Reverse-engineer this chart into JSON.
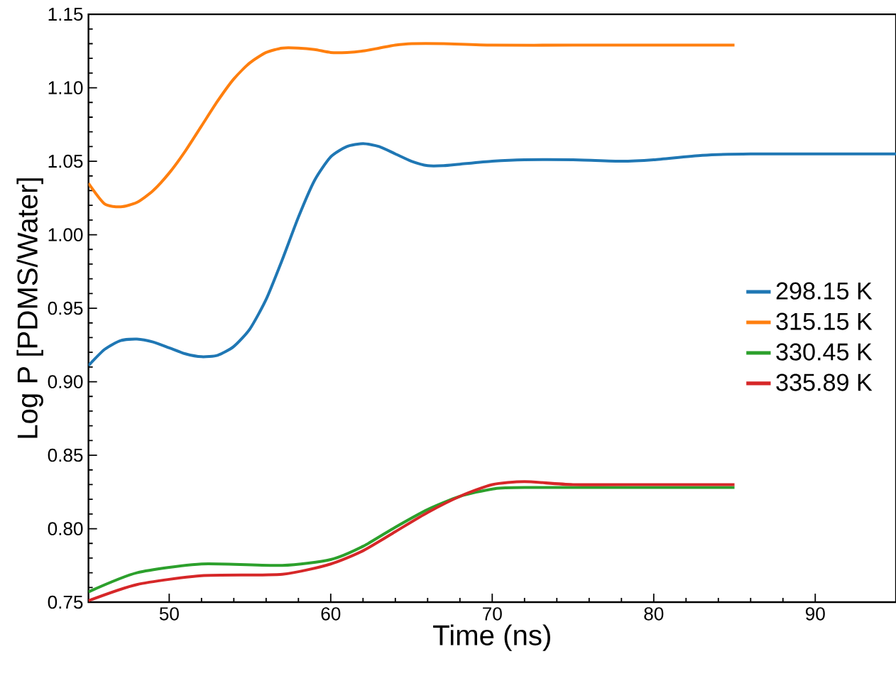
{
  "chart_data": {
    "type": "line",
    "xlabel": "Time (ns)",
    "ylabel": "Log P [PDMS/Water]",
    "xlim": [
      45,
      95
    ],
    "ylim": [
      0.75,
      1.15
    ],
    "xticks": [
      50,
      60,
      70,
      80,
      90
    ],
    "yticks": [
      {
        "value": 0.75,
        "label": "0.75"
      },
      {
        "value": 0.8,
        "label": "0.80"
      },
      {
        "value": 0.85,
        "label": "0.85"
      },
      {
        "value": 0.9,
        "label": "0.90"
      },
      {
        "value": 0.95,
        "label": "0.95"
      },
      {
        "value": 1.0,
        "label": "1.00"
      },
      {
        "value": 1.05,
        "label": "1.05"
      },
      {
        "value": 1.1,
        "label": "1.10"
      },
      {
        "value": 1.15,
        "label": "1.15"
      }
    ],
    "legend": "right",
    "grid": false,
    "marker": "none",
    "line_style": "solid",
    "series": [
      {
        "name": "298.15 K",
        "color": "#1f77b4",
        "x": [
          45,
          46,
          47,
          48,
          49,
          50,
          51,
          52,
          53,
          54,
          55,
          56,
          57,
          58,
          59,
          60,
          61,
          62,
          63,
          64,
          65,
          66,
          67,
          68,
          70,
          72,
          75,
          78,
          80,
          83,
          86,
          90,
          95
        ],
        "values": [
          0.911,
          0.922,
          0.928,
          0.929,
          0.927,
          0.923,
          0.919,
          0.917,
          0.918,
          0.924,
          0.936,
          0.956,
          0.983,
          1.012,
          1.037,
          1.053,
          1.06,
          1.062,
          1.06,
          1.055,
          1.05,
          1.047,
          1.047,
          1.048,
          1.05,
          1.051,
          1.051,
          1.05,
          1.051,
          1.054,
          1.055,
          1.055,
          1.055
        ]
      },
      {
        "name": "315.15 K",
        "color": "#ff7f0e",
        "x": [
          45,
          46,
          47,
          48,
          49,
          50,
          51,
          52,
          53,
          54,
          55,
          56,
          57,
          58,
          59,
          60,
          61,
          62,
          63,
          64,
          65,
          67,
          70,
          75,
          80,
          85
        ],
        "values": [
          1.035,
          1.021,
          1.019,
          1.022,
          1.03,
          1.042,
          1.057,
          1.074,
          1.091,
          1.106,
          1.117,
          1.124,
          1.127,
          1.127,
          1.126,
          1.124,
          1.124,
          1.125,
          1.127,
          1.129,
          1.13,
          1.13,
          1.129,
          1.129,
          1.129,
          1.129
        ]
      },
      {
        "name": "330.45 K",
        "color": "#2ca02c",
        "x": [
          45,
          48,
          52,
          57,
          60,
          62,
          64,
          66,
          68,
          70,
          72,
          85
        ],
        "values": [
          0.757,
          0.77,
          0.776,
          0.775,
          0.779,
          0.788,
          0.801,
          0.813,
          0.822,
          0.827,
          0.828,
          0.828
        ]
      },
      {
        "name": "335.89 K",
        "color": "#d62728",
        "x": [
          45,
          48,
          52,
          57,
          60,
          62,
          64,
          66,
          68,
          70,
          72,
          75,
          80,
          85
        ],
        "values": [
          0.751,
          0.762,
          0.768,
          0.769,
          0.776,
          0.785,
          0.798,
          0.811,
          0.822,
          0.83,
          0.832,
          0.83,
          0.83,
          0.83
        ]
      }
    ]
  }
}
